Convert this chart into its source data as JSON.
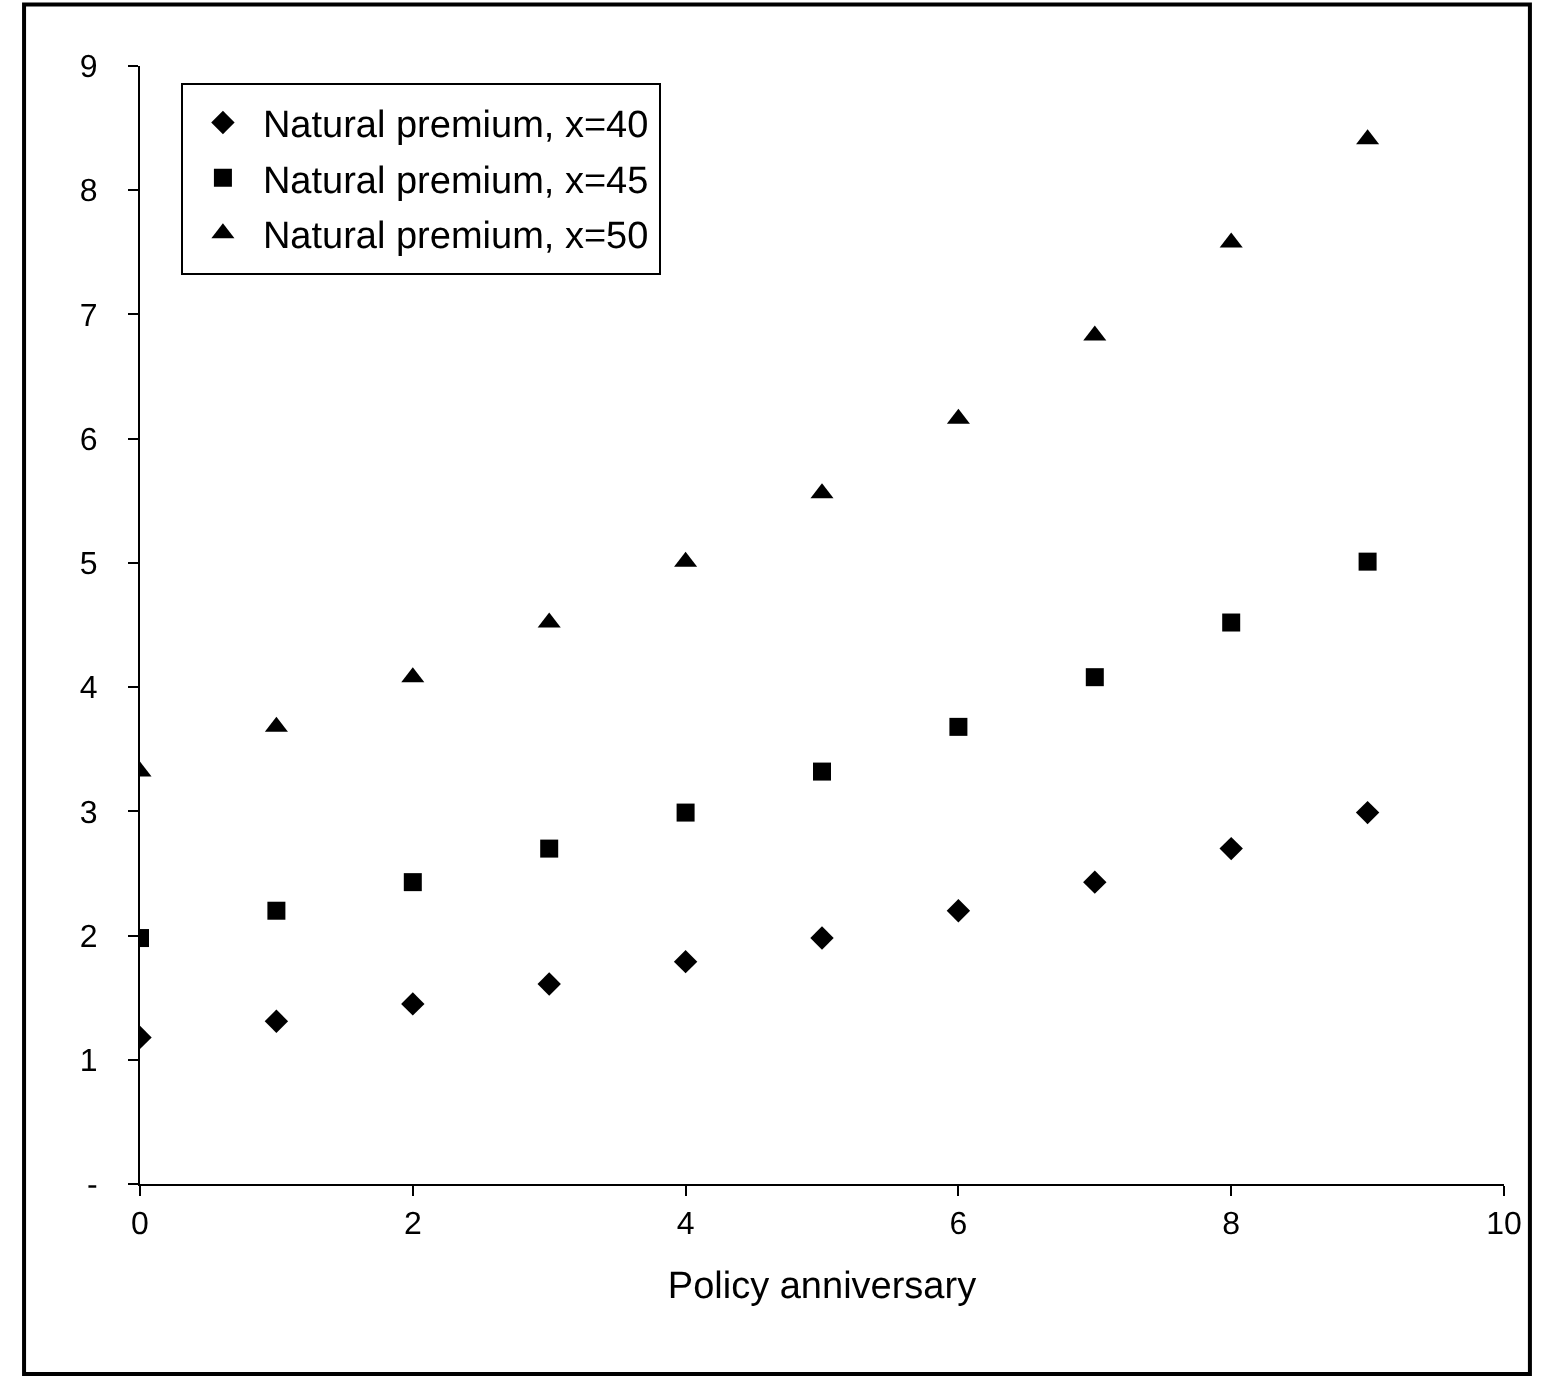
{
  "chart_data": {
    "type": "scatter",
    "xlabel": "Policy anniversary",
    "x": [
      0,
      1,
      2,
      3,
      4,
      5,
      6,
      7,
      8,
      9
    ],
    "series": [
      {
        "name": "Natural premium, x=40",
        "color": "#000000",
        "marker": "diamond",
        "values": [
          1.18,
          1.31,
          1.45,
          1.61,
          1.79,
          1.98,
          2.2,
          2.43,
          2.7,
          2.99
        ]
      },
      {
        "name": "Natural premium, x=45",
        "color": "#000000",
        "marker": "square",
        "values": [
          1.98,
          2.2,
          2.43,
          2.7,
          2.99,
          3.32,
          3.68,
          4.08,
          4.52,
          5.01
        ]
      },
      {
        "name": "Natural premium, x=50",
        "color": "#000000",
        "marker": "triangle",
        "values": [
          3.32,
          3.68,
          4.08,
          4.52,
          5.01,
          5.56,
          6.16,
          6.83,
          7.58,
          8.41
        ]
      }
    ],
    "xlim": [
      0,
      10
    ],
    "xticks": [
      0,
      2,
      4,
      6,
      8,
      10
    ],
    "ylim": [
      0,
      9
    ],
    "yticks": [
      {
        "value": 0,
        "label": "-"
      },
      1,
      2,
      3,
      4,
      5,
      6,
      7,
      8,
      9
    ],
    "legend": "top left"
  }
}
